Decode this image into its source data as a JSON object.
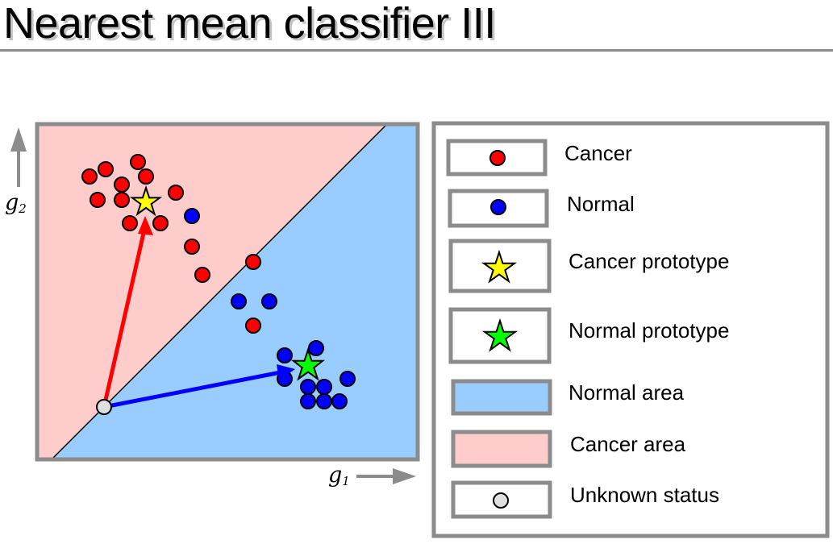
{
  "title": "Nearest mean classifier III",
  "axes": {
    "x": {
      "symbol": "g",
      "subscript": "1"
    },
    "y": {
      "symbol": "g",
      "subscript": "2"
    }
  },
  "legend": [
    {
      "key": "cancer",
      "label": "Cancer",
      "swatch": "dot",
      "color": "#ff0000"
    },
    {
      "key": "normal",
      "label": "Normal",
      "swatch": "dot",
      "color": "#0000ff"
    },
    {
      "key": "cancer-proto",
      "label": "Cancer prototype",
      "swatch": "star",
      "color": "#ffff00"
    },
    {
      "key": "normal-proto",
      "label": "Normal prototype",
      "swatch": "star",
      "color": "#00ff00"
    },
    {
      "key": "normal-area",
      "label": "Normal area",
      "swatch": "fill",
      "color": "#99ccff"
    },
    {
      "key": "cancer-area",
      "label": "Cancer area",
      "swatch": "fill",
      "color": "#ffcccc"
    },
    {
      "key": "unknown",
      "label": "Unknown status",
      "swatch": "dot",
      "color": "#e0e0e0"
    }
  ],
  "colors": {
    "cancer_point": "#ff0000",
    "normal_point": "#0000ff",
    "cancer_prototype": "#ffff00",
    "normal_prototype": "#00ff00",
    "normal_area": "#99ccff",
    "cancer_area": "#ffcccc",
    "unknown_point": "#e0e0e0",
    "arrow_to_cancer": "#ff0000",
    "arrow_to_normal": "#0000ff",
    "frame": "#8c8c8c"
  }
}
